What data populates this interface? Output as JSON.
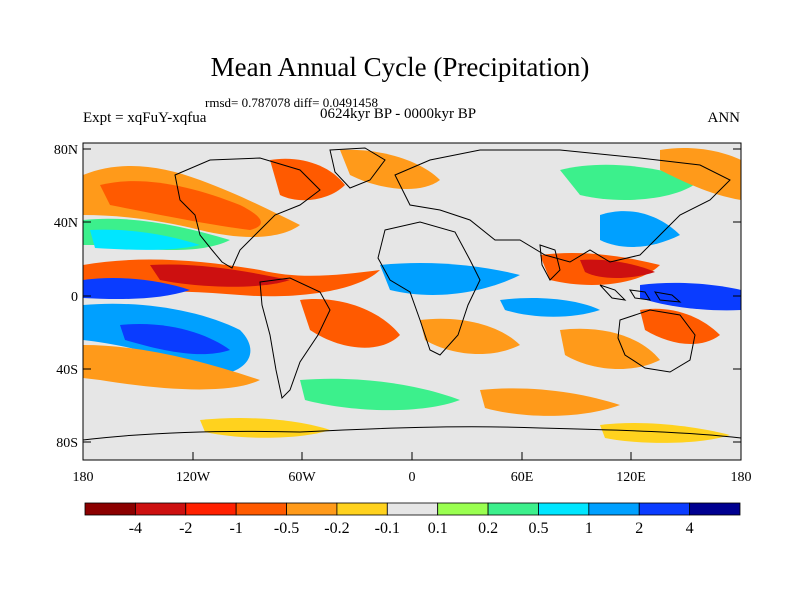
{
  "title": "Mean Annual Cycle (Precipitation)",
  "stats": "rmsd= 0.787078 diff= 0.0491458",
  "period": "0624kyr BP - 0000kyr BP",
  "experiment": "Expt = xqFuY-xqfua",
  "season": "ANN",
  "axes": {
    "y_ticks": [
      "80N",
      "40N",
      "0",
      "40S",
      "80S"
    ],
    "x_ticks": [
      "180",
      "120W",
      "60W",
      "0",
      "60E",
      "120E",
      "180"
    ]
  },
  "colorbar": {
    "labels": [
      "-4",
      "-2",
      "-1",
      "-0.5",
      "-0.2",
      "-0.1",
      "0.1",
      "0.2",
      "0.5",
      "1",
      "2",
      "4"
    ],
    "colors": [
      "#8b0000",
      "#cd1010",
      "#ff2000",
      "#ff5a00",
      "#ff9a1a",
      "#ffd21e",
      "#e6e6e6",
      "#9aff50",
      "#3cf08c",
      "#00e6ff",
      "#00a0ff",
      "#0a3cff",
      "#000090"
    ]
  },
  "map_colors": {
    "ocean_bg": "#e6e6e6",
    "coast": "#000000"
  }
}
